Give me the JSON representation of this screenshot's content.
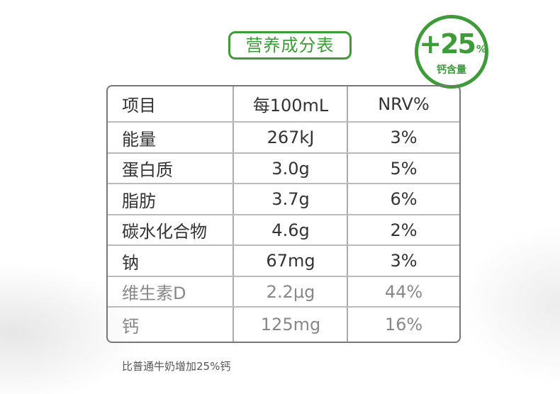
{
  "header": {
    "title": "营养成分表"
  },
  "badge": {
    "value": "+25",
    "unit": "%",
    "label": "钙含量"
  },
  "table": {
    "columns": [
      "项目",
      "每100mL",
      "NRV%"
    ],
    "rows": [
      [
        "能量",
        "267kJ",
        "3%"
      ],
      [
        "蛋白质",
        "3.0g",
        "5%"
      ],
      [
        "脂肪",
        "3.7g",
        "6%"
      ],
      [
        "碳水化合物",
        "4.6g",
        "2%"
      ],
      [
        "钠",
        "67mg",
        "3%"
      ],
      [
        "维生素D",
        "2.2μg",
        "44%"
      ],
      [
        "钙",
        "125mg",
        "16%"
      ]
    ]
  },
  "footnote": "比普通牛奶增加25%钙"
}
